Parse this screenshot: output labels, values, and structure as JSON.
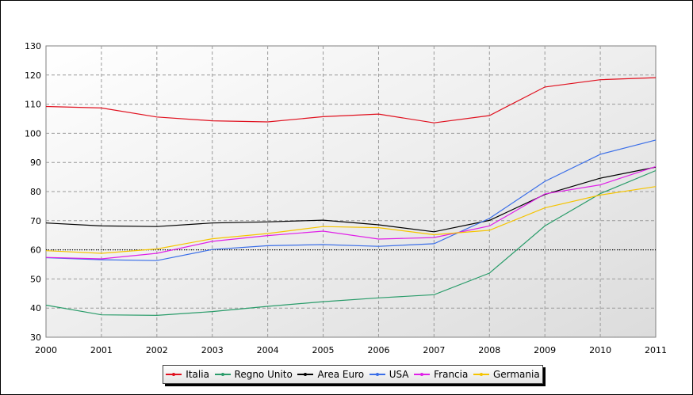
{
  "chart_data": {
    "type": "line",
    "title": "",
    "xlabel": "",
    "ylabel": "",
    "x": [
      2000,
      2001,
      2002,
      2003,
      2004,
      2005,
      2006,
      2007,
      2008,
      2009,
      2010,
      2011
    ],
    "ylim": [
      30,
      130
    ],
    "yticks": [
      30,
      40,
      50,
      60,
      70,
      80,
      90,
      100,
      110,
      120,
      130
    ],
    "grid": true,
    "reference_line": 60,
    "legend_position": "bottom-center",
    "series": [
      {
        "name": "Italia",
        "color": "#e0101e",
        "values": [
          109.2,
          108.7,
          105.6,
          104.3,
          103.9,
          105.7,
          106.6,
          103.6,
          106.1,
          115.9,
          118.4,
          119.1
        ]
      },
      {
        "name": "Regno Unito",
        "color": "#2a9c6a",
        "values": [
          41.0,
          37.7,
          37.5,
          38.8,
          40.6,
          42.2,
          43.5,
          44.6,
          52.0,
          68.2,
          79.3,
          87.2
        ]
      },
      {
        "name": "Area Euro",
        "color": "#000000",
        "values": [
          69.2,
          68.2,
          68.0,
          69.2,
          69.6,
          70.2,
          68.6,
          66.2,
          70.1,
          79.0,
          84.6,
          88.4
        ]
      },
      {
        "name": "USA",
        "color": "#3a6ee8",
        "values": [
          57.3,
          56.6,
          56.3,
          60.1,
          61.4,
          61.8,
          61.2,
          62.1,
          70.8,
          83.5,
          92.8,
          97.7
        ]
      },
      {
        "name": "Francia",
        "color": "#e020e8",
        "values": [
          57.4,
          56.9,
          58.8,
          62.9,
          64.9,
          66.4,
          63.7,
          64.2,
          68.2,
          79.2,
          82.3,
          88.6
        ]
      },
      {
        "name": "Germania",
        "color": "#f5c400",
        "values": [
          59.7,
          58.8,
          60.3,
          63.8,
          65.6,
          68.0,
          67.6,
          65.2,
          66.7,
          74.4,
          78.8,
          81.7
        ]
      }
    ]
  }
}
